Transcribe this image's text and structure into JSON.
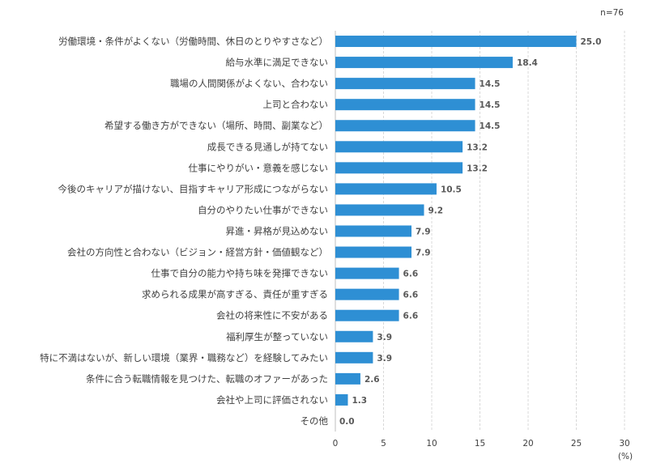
{
  "chart_data": {
    "type": "bar",
    "orientation": "horizontal",
    "sample_note": "n=76",
    "unit_label": "(%)",
    "categories": [
      "労働環境・条件がよくない（労働時間、休日のとりやすさなど）",
      "給与水準に満足できない",
      "職場の人間関係がよくない、合わない",
      "上司と合わない",
      "希望する働き方ができない（場所、時間、副業など）",
      "成長できる見通しが持てない",
      "仕事にやりがい・意義を感じない",
      "今後のキャリアが描けない、目指すキャリア形成につながらない",
      "自分のやりたい仕事ができない",
      "昇進・昇格が見込めない",
      "会社の方向性と合わない（ビジョン・経営方針・価値観など）",
      "仕事で自分の能力や持ち味を発揮できない",
      "求められる成果が高すぎる、責任が重すぎる",
      "会社の将来性に不安がある",
      "福利厚生が整っていない",
      "特に不満はないが、新しい環境（業界・職務など）を経験してみたい",
      "条件に合う転職情報を見つけた、転職のオファーがあった",
      "会社や上司に評価されない",
      "その他"
    ],
    "values": [
      25.0,
      18.4,
      14.5,
      14.5,
      14.5,
      13.2,
      13.2,
      10.5,
      9.2,
      7.9,
      7.9,
      6.6,
      6.6,
      6.6,
      3.9,
      3.9,
      2.6,
      1.3,
      0.0
    ],
    "value_labels": [
      "25.0",
      "18.4",
      "14.5",
      "14.5",
      "14.5",
      "13.2",
      "13.2",
      "10.5",
      "9.2",
      "7.9",
      "7.9",
      "6.6",
      "6.6",
      "6.6",
      "3.9",
      "3.9",
      "2.6",
      "1.3",
      "0.0"
    ],
    "xlim": [
      0,
      30
    ],
    "xticks": [
      "0",
      "5",
      "10",
      "15",
      "20",
      "25",
      "30"
    ],
    "grid": true,
    "bar_color": "#2e8fd4",
    "grid_color": "#d9d9d9",
    "axis_color": "#bfbfbf"
  }
}
